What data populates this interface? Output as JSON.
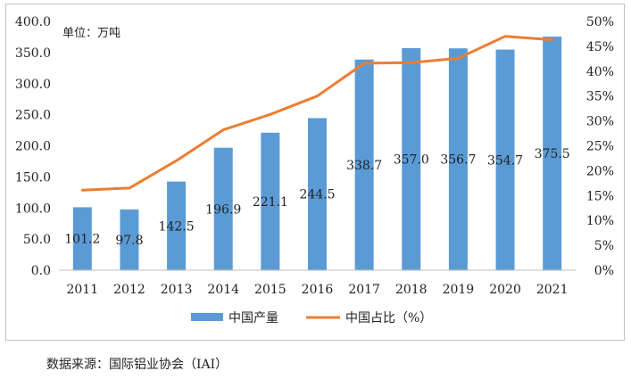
{
  "chart_data": {
    "type": "bar",
    "unit_label": "单位：万吨",
    "categories": [
      "2011",
      "2012",
      "2013",
      "2014",
      "2015",
      "2016",
      "2017",
      "2018",
      "2019",
      "2020",
      "2021"
    ],
    "series": [
      {
        "name": "中国产量",
        "type": "bar",
        "axis": "left",
        "color": "#5b9bd5",
        "values": [
          101.2,
          97.8,
          142.5,
          196.9,
          221.1,
          244.5,
          338.7,
          357.0,
          356.7,
          354.7,
          375.5
        ],
        "labels": [
          "101.2",
          "97.8",
          "142.5",
          "196.9",
          "221.1",
          "244.5",
          "338.7",
          "357.0",
          "356.7",
          "354.7",
          "375.5"
        ]
      },
      {
        "name": "中国占比（%）",
        "type": "line",
        "axis": "right",
        "color": "#ed7d31",
        "values": [
          16.1,
          16.5,
          22.0,
          28.2,
          31.3,
          35.0,
          41.6,
          41.7,
          42.6,
          47.0,
          46.3
        ]
      }
    ],
    "y_left": {
      "min": 0,
      "max": 400,
      "step": 50,
      "tick_labels": [
        "0.0",
        "50.0",
        "100.0",
        "150.0",
        "200.0",
        "250.0",
        "300.0",
        "350.0",
        "400.0"
      ]
    },
    "y_right": {
      "min": 0,
      "max": 50,
      "step": 5,
      "tick_labels": [
        "0%",
        "5%",
        "10%",
        "15%",
        "20%",
        "25%",
        "30%",
        "35%",
        "40%",
        "45%",
        "50%"
      ]
    },
    "grid": false,
    "legend_position": "bottom"
  },
  "source_note": "数据来源：国际铝业协会（IAI）"
}
